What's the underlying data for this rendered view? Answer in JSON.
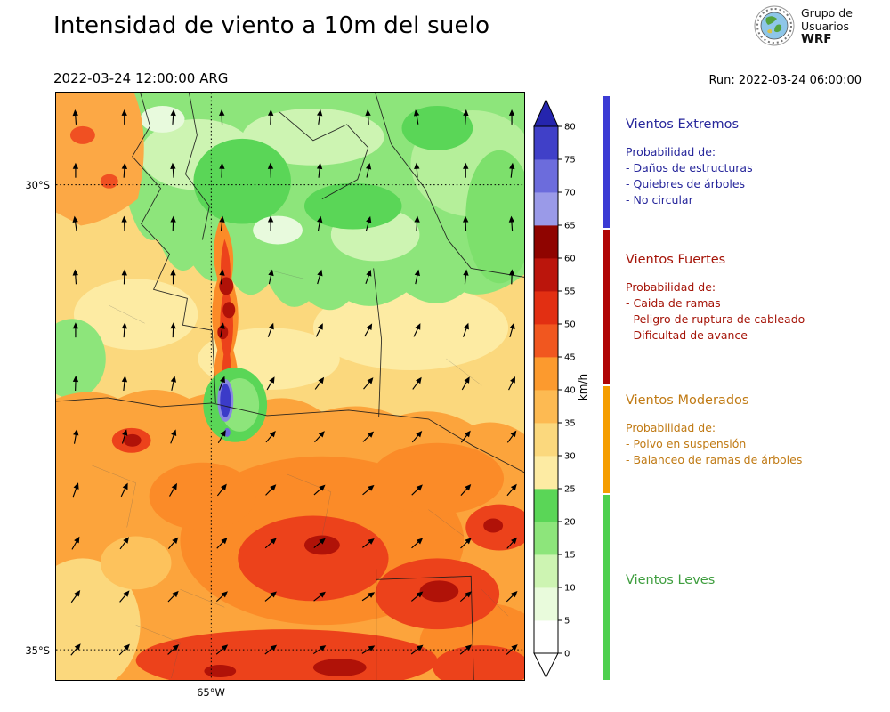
{
  "header": {
    "title": "Intensidad de viento a 10m del suelo",
    "valid_time": "2022-03-24 12:00:00 ARG",
    "run_label": "Run: 2022-03-24 06:00:00",
    "logo": {
      "line1": "Grupo de",
      "line2": "Usuarios",
      "line3": "WRF"
    }
  },
  "map_axes": {
    "lat_top": "30°S",
    "lat_bottom": "35°S",
    "lon": "65°W"
  },
  "colorbar": {
    "unit": "km/h",
    "ticks": [
      "0",
      "5",
      "10",
      "15",
      "20",
      "25",
      "30",
      "35",
      "40",
      "45",
      "50",
      "55",
      "60",
      "65",
      "70",
      "75",
      "80"
    ],
    "segments": [
      {
        "from": 0,
        "to": 5,
        "color": "#ffffff"
      },
      {
        "from": 5,
        "to": 10,
        "color": "#e9fbdc"
      },
      {
        "from": 10,
        "to": 15,
        "color": "#cdf4b2"
      },
      {
        "from": 15,
        "to": 20,
        "color": "#8de57b"
      },
      {
        "from": 20,
        "to": 25,
        "color": "#5ad657"
      },
      {
        "from": 25,
        "to": 30,
        "color": "#fdeba3"
      },
      {
        "from": 30,
        "to": 35,
        "color": "#fbd87d"
      },
      {
        "from": 35,
        "to": 40,
        "color": "#fdba52"
      },
      {
        "from": 40,
        "to": 45,
        "color": "#fc9a2e"
      },
      {
        "from": 45,
        "to": 50,
        "color": "#f1571f"
      },
      {
        "from": 50,
        "to": 55,
        "color": "#e22f12"
      },
      {
        "from": 55,
        "to": 60,
        "color": "#bb150c"
      },
      {
        "from": 60,
        "to": 65,
        "color": "#8f0400"
      },
      {
        "from": 65,
        "to": 70,
        "color": "#9a9ae8"
      },
      {
        "from": 70,
        "to": 75,
        "color": "#6c6cdc"
      },
      {
        "from": 75,
        "to": 80,
        "color": "#4040c8"
      }
    ],
    "over_color": "#2525ae",
    "under_color": "#ffffff"
  },
  "legend": {
    "sections": [
      {
        "id": "extremos",
        "title": "Vientos Extremos",
        "text_color": "#26269b",
        "bar_color": "#3b3bd4",
        "prob_label": "Probabilidad de:",
        "lines": [
          "- Daños de estructuras",
          "- Quiebres de árboles",
          "- No circular"
        ]
      },
      {
        "id": "fuertes",
        "title": "Vientos Fuertes",
        "text_color": "#a51408",
        "bar_color": "#b00505",
        "prob_label": "Probabilidad de:",
        "lines": [
          "- Caida de ramas",
          "- Peligro de ruptura de cableado",
          "- Dificultad de avance"
        ]
      },
      {
        "id": "moderados",
        "title": "Vientos Moderados",
        "text_color": "#c07a14",
        "bar_color": "#f59d00",
        "prob_label": "Probabilidad de:",
        "lines": [
          "- Polvo en suspensión",
          "- Balanceo de ramas de árboles"
        ]
      },
      {
        "id": "leves",
        "title": "Vientos Leves",
        "text_color": "#3f9e3f",
        "bar_color": "#4ed04e",
        "prob_label": "",
        "lines": []
      }
    ]
  },
  "wind_field": {
    "units": "km/h",
    "cols": [
      22,
      77,
      132,
      187,
      242,
      297,
      352,
      407,
      462,
      514
    ],
    "rows": [
      28,
      88,
      148,
      208,
      268,
      328,
      388,
      448,
      508,
      568,
      628
    ],
    "angles_deg": [
      [
        94,
        90,
        86,
        92,
        88,
        82,
        94,
        100,
        86,
        90
      ],
      [
        90,
        86,
        94,
        88,
        92,
        84,
        78,
        94,
        90,
        84
      ],
      [
        98,
        92,
        88,
        84,
        90,
        80,
        74,
        86,
        92,
        94
      ],
      [
        94,
        88,
        90,
        84,
        78,
        74,
        70,
        78,
        84,
        88
      ],
      [
        90,
        86,
        88,
        80,
        70,
        64,
        60,
        64,
        70,
        74
      ],
      [
        88,
        84,
        78,
        70,
        60,
        54,
        50,
        54,
        60,
        64
      ],
      [
        80,
        74,
        70,
        60,
        50,
        48,
        44,
        50,
        52,
        54
      ],
      [
        70,
        64,
        60,
        52,
        46,
        42,
        40,
        44,
        48,
        50
      ],
      [
        60,
        54,
        50,
        46,
        42,
        40,
        38,
        42,
        44,
        48
      ],
      [
        54,
        50,
        46,
        42,
        40,
        38,
        34,
        40,
        42,
        44
      ],
      [
        50,
        46,
        42,
        40,
        38,
        34,
        32,
        38,
        40,
        42
      ]
    ]
  }
}
